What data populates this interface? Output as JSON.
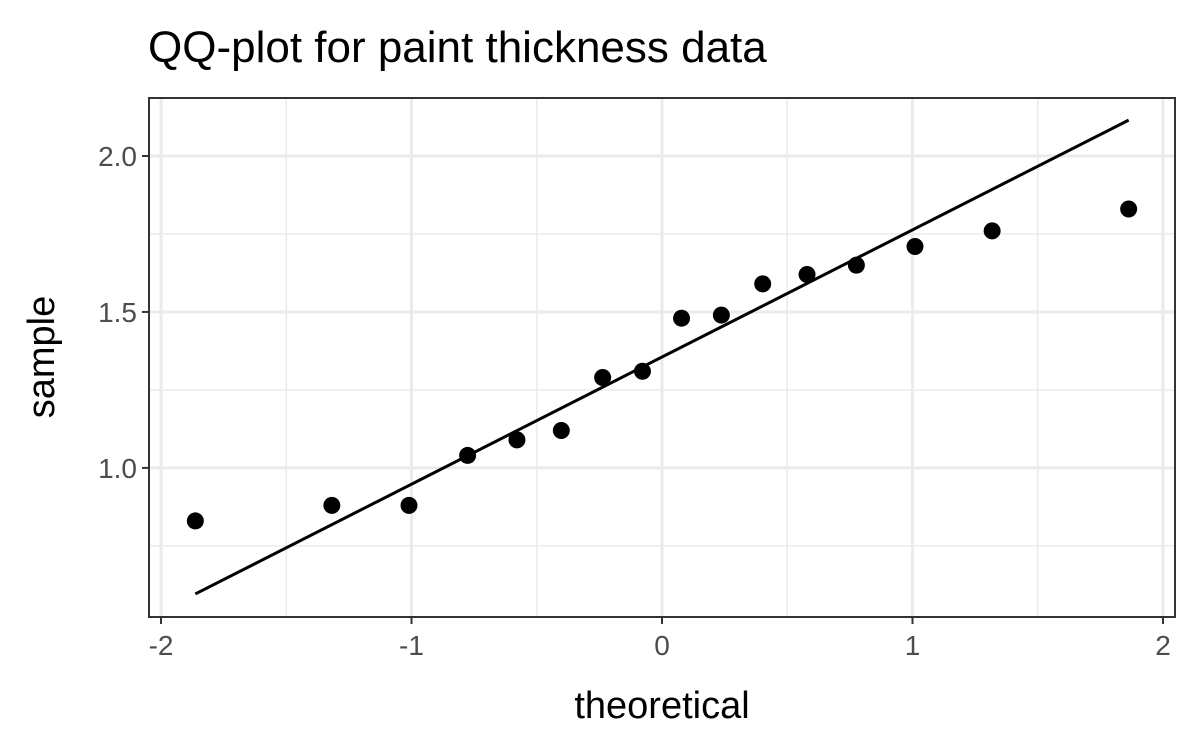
{
  "chart_data": {
    "type": "scatter",
    "title": "QQ-plot for paint thickness data",
    "x_label": "theoretical",
    "y_label": "sample",
    "points": {
      "x": [
        -1.863,
        -1.318,
        -1.01,
        -0.776,
        -0.579,
        -0.402,
        -0.237,
        -0.078,
        0.078,
        0.237,
        0.402,
        0.579,
        0.776,
        1.01,
        1.318,
        1.863
      ],
      "y": [
        0.83,
        0.88,
        0.88,
        1.04,
        1.09,
        1.12,
        1.29,
        1.31,
        1.48,
        1.49,
        1.59,
        1.62,
        1.65,
        1.71,
        1.76,
        1.83
      ],
      "color": "#000000"
    },
    "line": {
      "x": [
        -1.863,
        1.863
      ],
      "y": [
        0.596,
        2.115
      ],
      "color": "#000000"
    },
    "xlim": [
      -2.048,
      2.048
    ],
    "ylim": [
      0.522,
      2.186
    ],
    "xticks": [
      -2,
      -1,
      0,
      1,
      2
    ],
    "yticks": [
      {
        "value": 1,
        "label": "1.0"
      },
      {
        "value": 1.5,
        "label": "1.5"
      },
      {
        "value": 2,
        "label": "2.0"
      }
    ],
    "xminorticks": [
      -1.5,
      -0.5,
      0.5,
      1.5
    ],
    "yminorticks": [
      0.75,
      1.25,
      1.75
    ],
    "grid": true
  }
}
